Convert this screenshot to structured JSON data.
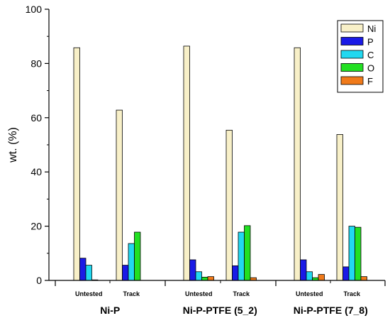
{
  "chart_data": {
    "type": "bar",
    "ylabel": "wt. (%)",
    "ylim": [
      0,
      100
    ],
    "yticks": [
      0,
      20,
      40,
      60,
      80,
      100
    ],
    "legend_position": "top-right",
    "series": [
      {
        "name": "Ni",
        "color": "#f8f0c8"
      },
      {
        "name": "P",
        "color": "#1a1ae6"
      },
      {
        "name": "C",
        "color": "#22d8f0"
      },
      {
        "name": "O",
        "color": "#22e022"
      },
      {
        "name": "F",
        "color": "#f07a1a"
      }
    ],
    "groups": [
      {
        "label": "Ni-P",
        "subgroups": [
          {
            "label": "Untested",
            "values": [
              85.8,
              8.2,
              5.6,
              0.2,
              0
            ]
          },
          {
            "label": "Track",
            "values": [
              62.8,
              5.6,
              13.6,
              17.8,
              0
            ]
          }
        ]
      },
      {
        "label": "Ni-P-PTFE (5_2)",
        "subgroups": [
          {
            "label": "Untested",
            "values": [
              86.4,
              7.6,
              3.2,
              1.2,
              1.4
            ]
          },
          {
            "label": "Track",
            "values": [
              55.4,
              5.4,
              17.8,
              20.2,
              1.0
            ]
          }
        ]
      },
      {
        "label": "Ni-P-PTFE (7_8)",
        "subgroups": [
          {
            "label": "Untested",
            "values": [
              85.8,
              7.6,
              3.2,
              1.0,
              2.2
            ]
          },
          {
            "label": "Track",
            "values": [
              53.8,
              5.0,
              20.0,
              19.6,
              1.4
            ]
          }
        ]
      }
    ]
  }
}
